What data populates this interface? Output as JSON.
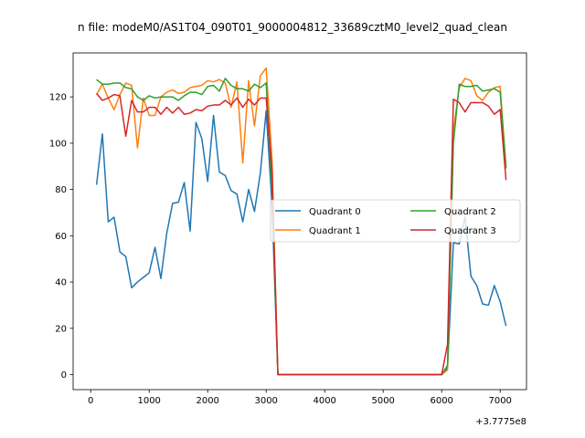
{
  "chart_data": {
    "type": "line",
    "title": "n file: modeM0/AS1T04_090T01_9000004812_33689cztM0_level2_quad_clean",
    "xlabel": "",
    "ylabel": "",
    "offset_label": "+3.7775e8",
    "xlim": [
      -300,
      7450
    ],
    "ylim": [
      -6.5,
      139
    ],
    "xticks": [
      0,
      1000,
      2000,
      3000,
      4000,
      5000,
      6000,
      7000
    ],
    "yticks": [
      0,
      20,
      40,
      60,
      80,
      100,
      120
    ],
    "legend": {
      "loc": "center-right",
      "ncol": 2
    },
    "x": [
      100,
      200,
      300,
      400,
      500,
      600,
      700,
      800,
      900,
      1000,
      1100,
      1200,
      1300,
      1400,
      1500,
      1600,
      1700,
      1800,
      1900,
      2000,
      2100,
      2200,
      2300,
      2400,
      2500,
      2600,
      2700,
      2800,
      2900,
      3000,
      3100,
      3200,
      6000,
      6100,
      6200,
      6300,
      6400,
      6500,
      6600,
      6700,
      6800,
      6900,
      7000,
      7100
    ],
    "series": [
      {
        "name": "Quadrant 0",
        "color": "#1f77b4",
        "values": [
          82,
          104,
          66,
          68,
          53,
          51,
          37.5,
          40,
          42,
          44,
          55,
          41.5,
          61,
          74,
          74.5,
          83,
          62,
          109,
          102,
          83.5,
          112,
          87.5,
          86,
          79.5,
          78,
          66,
          80,
          70.5,
          87,
          114,
          73,
          0,
          0,
          3,
          57,
          56.5,
          68,
          42.5,
          38.5,
          30.5,
          30,
          38.5,
          31.5,
          21
        ]
      },
      {
        "name": "Quadrant 1",
        "color": "#ff7f0e",
        "values": [
          121,
          125.5,
          119.5,
          114.5,
          121,
          126,
          125,
          98,
          119.5,
          112,
          112,
          120,
          122,
          123,
          121.5,
          122,
          124,
          124.5,
          125,
          127,
          126.5,
          127.5,
          126,
          115.5,
          126.5,
          91.5,
          127,
          107.5,
          129,
          132.5,
          93,
          0,
          0,
          2,
          105.5,
          124,
          128,
          127,
          120.5,
          118.5,
          122,
          124,
          124.5,
          89
        ]
      },
      {
        "name": "Quadrant 2",
        "color": "#2ca02c",
        "values": [
          127.5,
          125.5,
          125.5,
          126,
          126,
          124,
          123.5,
          120,
          118.5,
          120.5,
          119.5,
          120,
          120,
          120,
          118.5,
          120.5,
          122,
          122,
          121,
          124.5,
          125,
          122.5,
          128,
          125,
          123.5,
          123.5,
          122.5,
          125.5,
          124,
          126,
          80,
          0,
          0,
          4,
          100,
          125.5,
          124.5,
          124.5,
          125,
          122.5,
          123,
          123.5,
          122,
          89.5
        ]
      },
      {
        "name": "Quadrant 3",
        "color": "#d62728",
        "values": [
          121.5,
          118.5,
          119.5,
          121,
          120.5,
          103,
          118.5,
          113.5,
          113.5,
          115.5,
          115.5,
          112.5,
          115.5,
          113,
          115.5,
          112.5,
          113,
          114.5,
          114,
          116,
          116.5,
          116.5,
          118.5,
          116.5,
          119.5,
          115.5,
          119,
          116.5,
          119.5,
          119.5,
          88,
          0,
          0,
          13,
          119,
          117.5,
          113.5,
          117.5,
          117.5,
          117.5,
          116,
          112.5,
          114.5,
          84
        ]
      }
    ]
  }
}
